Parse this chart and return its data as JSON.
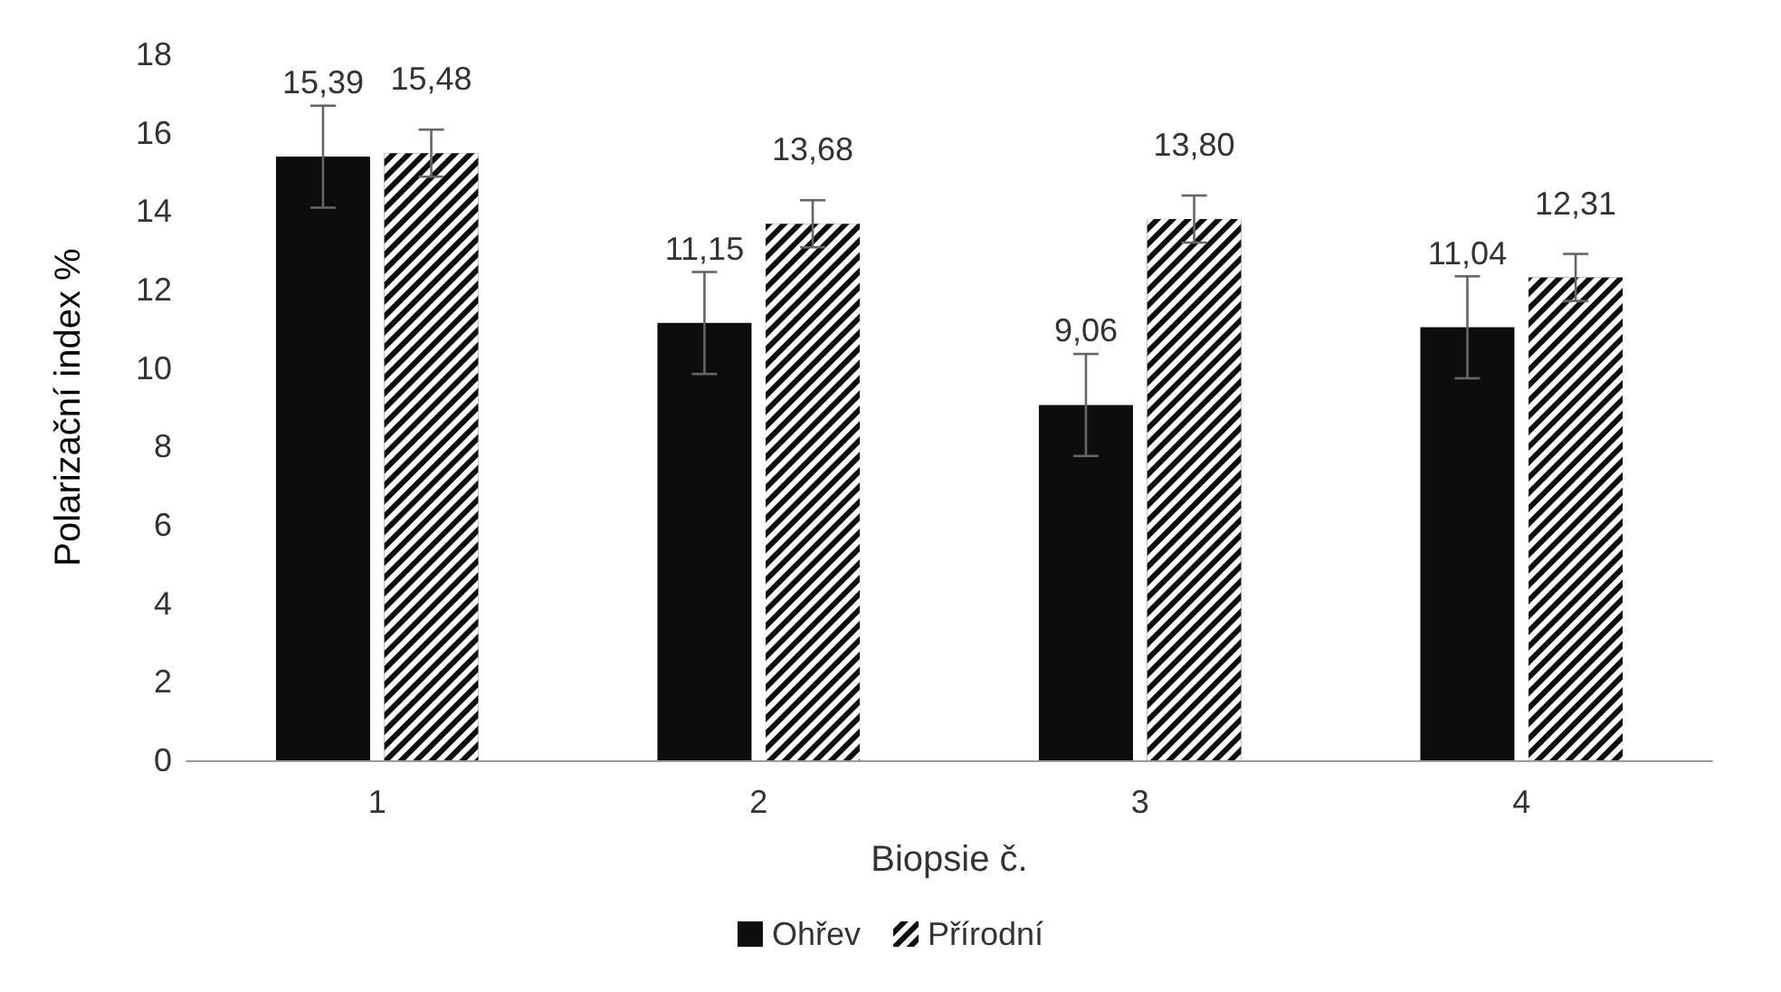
{
  "chart_data": {
    "type": "bar",
    "xlabel": "Biopsie č.",
    "ylabel": "Polarizační index %",
    "categories": [
      "1",
      "2",
      "3",
      "4"
    ],
    "series": [
      {
        "name": "Ohřev",
        "color": "#0d0d0d",
        "values": [
          15.39,
          11.15,
          9.06,
          11.04
        ],
        "errors": [
          1.3,
          1.3,
          1.3,
          1.3
        ],
        "value_labels": [
          "15,39",
          "11,15",
          "9,06",
          "11,04"
        ]
      },
      {
        "name": "Přírodní",
        "color": "#0d0d0d",
        "values": [
          15.48,
          13.68,
          13.8,
          12.31
        ],
        "errors": [
          0.6,
          0.6,
          0.6,
          0.6
        ],
        "value_labels": [
          "15,48",
          "13,68",
          "13,80",
          "12,31"
        ]
      }
    ],
    "ylim": [
      0,
      18
    ],
    "yticks": [
      0,
      2,
      4,
      6,
      8,
      10,
      12,
      14,
      16,
      18
    ],
    "grid": false,
    "legend": "bottom"
  }
}
